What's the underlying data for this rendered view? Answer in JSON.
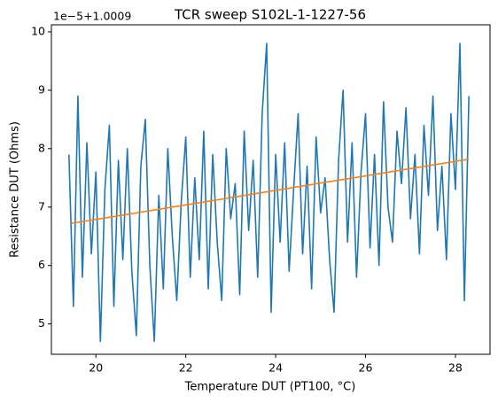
{
  "chart_data": {
    "type": "line",
    "title": "TCR sweep S102L-1-1227-56",
    "x_label": "Temperature DUT (PT100, °C)",
    "y_label": "Resistance DUT (Ohms)",
    "y_offset_label": "1e−5+1.0009",
    "xlim": [
      19.01,
      28.77
    ],
    "ylim": [
      4.48,
      10.12
    ],
    "xticks": [
      20,
      22,
      24,
      26,
      28
    ],
    "yticks": [
      5,
      6,
      7,
      8,
      9,
      10
    ],
    "series": [
      {
        "color": "#1f77b4",
        "x": [
          19.4,
          19.5,
          19.6,
          19.7,
          19.8,
          19.9,
          20.0,
          20.1,
          20.2,
          20.3,
          20.4,
          20.5,
          20.6,
          20.7,
          20.8,
          20.9,
          21.0,
          21.1,
          21.2,
          21.3,
          21.4,
          21.5,
          21.6,
          21.7,
          21.8,
          21.9,
          22.0,
          22.1,
          22.2,
          22.3,
          22.4,
          22.5,
          22.6,
          22.7,
          22.8,
          22.9,
          23.0,
          23.1,
          23.2,
          23.3,
          23.4,
          23.5,
          23.6,
          23.7,
          23.8,
          23.9,
          24.0,
          24.1,
          24.2,
          24.3,
          24.4,
          24.5,
          24.6,
          24.7,
          24.8,
          24.9,
          25.0,
          25.1,
          25.2,
          25.3,
          25.4,
          25.5,
          25.6,
          25.7,
          25.8,
          25.9,
          26.0,
          26.1,
          26.2,
          26.3,
          26.4,
          26.5,
          26.6,
          26.7,
          26.8,
          26.9,
          27.0,
          27.1,
          27.2,
          27.3,
          27.4,
          27.5,
          27.6,
          27.7,
          27.8,
          27.9,
          28.0,
          28.1,
          28.2,
          28.3
        ],
        "values": [
          7.9,
          5.3,
          8.9,
          5.8,
          8.1,
          6.2,
          7.6,
          4.7,
          7.3,
          8.4,
          5.3,
          7.8,
          6.1,
          8.0,
          5.9,
          4.8,
          7.7,
          8.5,
          6.0,
          4.7,
          7.2,
          5.6,
          8.0,
          6.5,
          5.4,
          7.1,
          8.2,
          5.8,
          7.5,
          6.1,
          8.3,
          5.6,
          7.9,
          6.4,
          5.4,
          8.0,
          6.8,
          7.4,
          5.5,
          8.3,
          6.6,
          7.8,
          5.8,
          8.6,
          9.8,
          5.2,
          7.9,
          6.4,
          8.1,
          5.9,
          7.3,
          8.6,
          6.2,
          7.7,
          5.6,
          8.2,
          6.9,
          7.5,
          6.1,
          5.2,
          7.8,
          9.0,
          6.4,
          8.1,
          5.8,
          7.6,
          8.6,
          6.3,
          7.9,
          6.0,
          8.8,
          7.0,
          6.4,
          8.3,
          7.4,
          8.7,
          6.8,
          7.9,
          6.2,
          8.4,
          7.2,
          8.9,
          6.6,
          7.7,
          6.1,
          8.6,
          7.3,
          9.8,
          5.4,
          8.9
        ]
      },
      {
        "color": "#ff7f0e",
        "x": [
          19.45,
          28.3
        ],
        "values": [
          6.72,
          7.82
        ]
      }
    ]
  }
}
